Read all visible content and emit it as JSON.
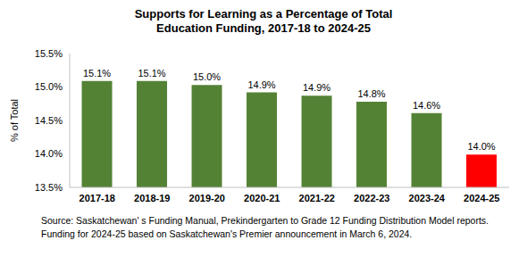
{
  "chart_data": {
    "type": "bar",
    "title": "Supports for Learning as a Percentage of Total Education Funding, 2017-18 to 2024-25",
    "y_label": "% of Total",
    "categories": [
      "2017-18",
      "2018-19",
      "2019-20",
      "2020-21",
      "2021-22",
      "2022-23",
      "2023-24",
      "2024-25"
    ],
    "values": [
      15.09,
      15.09,
      15.03,
      14.92,
      14.87,
      14.78,
      14.61,
      13.99
    ],
    "value_labels": [
      "15.1%",
      "15.1%",
      "15.0%",
      "14.9%",
      "14.9%",
      "14.8%",
      "14.6%",
      "14.0%"
    ],
    "colors": [
      "#548235",
      "#548235",
      "#548235",
      "#548235",
      "#548235",
      "#548235",
      "#548235",
      "#ff0000"
    ],
    "ylim": [
      13.5,
      15.5
    ],
    "yticks": [
      {
        "value": 13.5,
        "label": "13.5%"
      },
      {
        "value": 14.0,
        "label": "14.0%"
      },
      {
        "value": 14.5,
        "label": "14.5%"
      },
      {
        "value": 15.0,
        "label": "15.0%"
      },
      {
        "value": 15.5,
        "label": "15.5%"
      }
    ],
    "grid": false,
    "data_labels": true,
    "annotations": [
      "Source: Saskatchewan' s Funding Manual, Prekindergarten to Grade 12 Funding Distribution Model reports.",
      "Funding for 2024-25 based on Saskatchewan's Premier announcement in March 6, 2024."
    ]
  }
}
